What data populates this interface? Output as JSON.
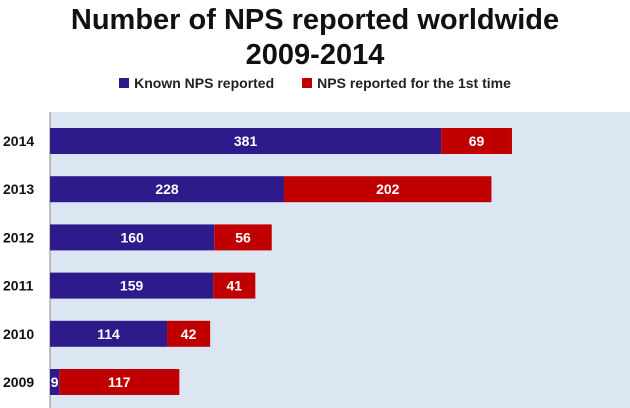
{
  "colors": {
    "known": "#2E1A8A",
    "first_time": "#C00000",
    "plot_bg": "#DCE6F2"
  },
  "chart_data": {
    "type": "bar",
    "orientation": "horizontal",
    "stacked": true,
    "title": "Number of NPS reported worldwide",
    "subtitle": "2009-2014",
    "categories": [
      "2014",
      "2013",
      "2012",
      "2011",
      "2010",
      "2009"
    ],
    "series": [
      {
        "name": "Known NPS reported",
        "values": [
          381,
          228,
          160,
          159,
          114,
          9
        ]
      },
      {
        "name": "NPS reported for the 1st time",
        "values": [
          69,
          202,
          56,
          41,
          42,
          117
        ]
      }
    ],
    "xlim": [
      0,
      500
    ],
    "grid": false,
    "legend_position": "top"
  }
}
